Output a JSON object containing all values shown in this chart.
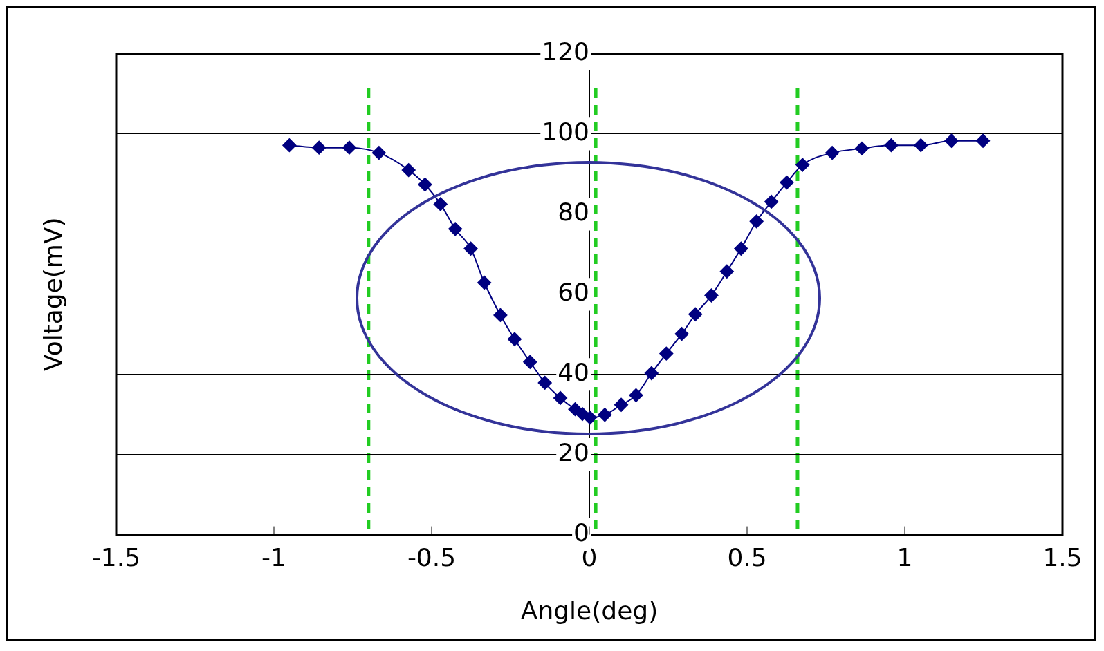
{
  "chart_data": {
    "type": "line",
    "xlabel": "Angle(deg)",
    "ylabel": "Voltage(mV)",
    "xlim": [
      -1.5,
      1.5
    ],
    "xticks": [
      -1.5,
      -1,
      -0.5,
      0,
      0.5,
      1,
      1.5
    ],
    "ylim": [
      0,
      120
    ],
    "yticks": [
      0,
      20,
      40,
      60,
      80,
      100,
      120
    ],
    "grid": "y",
    "legend": false,
    "marker": "diamond",
    "line_style": "solid",
    "series": [
      {
        "color": "#000080",
        "x": [
          -0.951,
          -0.857,
          -0.761,
          -0.667,
          -0.573,
          -0.521,
          -0.472,
          -0.425,
          -0.376,
          -0.333,
          -0.282,
          -0.237,
          -0.188,
          -0.141,
          -0.092,
          -0.045,
          -0.022,
          0.002,
          0.049,
          0.101,
          0.148,
          0.197,
          0.244,
          0.293,
          0.336,
          0.387,
          0.436,
          0.481,
          0.53,
          0.577,
          0.626,
          0.676,
          0.77,
          0.864,
          0.957,
          1.051,
          1.148,
          1.248
        ],
        "values": [
          97.2,
          96.6,
          96.6,
          95.3,
          91.0,
          87.4,
          82.5,
          76.3,
          71.4,
          62.9,
          54.8,
          48.8,
          43.1,
          37.9,
          34.1,
          31.3,
          30.1,
          29.2,
          29.9,
          32.4,
          34.8,
          40.3,
          45.2,
          50.1,
          55.0,
          59.7,
          65.7,
          71.4,
          78.2,
          83.1,
          87.9,
          92.3,
          95.3,
          96.4,
          97.2,
          97.2,
          98.3,
          98.3
        ]
      }
    ],
    "ref_lines": [
      {
        "axis": "x",
        "value": -0.7,
        "color": "#22cc22",
        "line_style": "dashed"
      },
      {
        "axis": "x",
        "value": 0.02,
        "color": "#22cc22",
        "line_style": "dashed"
      },
      {
        "axis": "x",
        "value": 0.66,
        "color": "#22cc22",
        "line_style": "dashed"
      }
    ]
  }
}
